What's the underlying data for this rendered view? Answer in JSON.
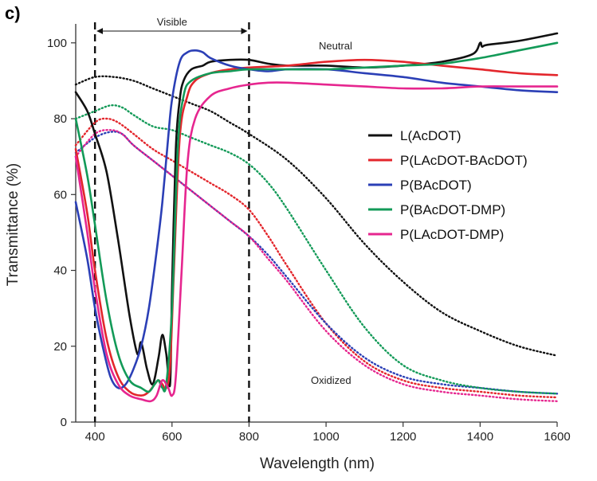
{
  "chart_data": {
    "type": "line",
    "panel_label": "c)",
    "xlabel": "Wavelength (nm)",
    "ylabel": "Transmittance (%)",
    "xlim": [
      350,
      1600
    ],
    "ylim": [
      0,
      105
    ],
    "xticks": [
      400,
      600,
      800,
      1000,
      1200,
      1400,
      1600
    ],
    "yticks": [
      0,
      20,
      40,
      60,
      80,
      100
    ],
    "grid": false,
    "legend_position": "right",
    "annotations": {
      "visible_label": "Visible",
      "visible_range": [
        400,
        800
      ],
      "neutral_label": "Neutral",
      "oxidized_label": "Oxidized"
    },
    "series": [
      {
        "name": "L(AcDOT)",
        "color": "#111111",
        "state": "neutral",
        "x": [
          350,
          380,
          400,
          430,
          460,
          490,
          510,
          520,
          535,
          550,
          565,
          575,
          585,
          595,
          600,
          610,
          620,
          630,
          650,
          680,
          700,
          750,
          800,
          850,
          900,
          1000,
          1100,
          1200,
          1300,
          1380,
          1400,
          1405,
          1420,
          1500,
          1600
        ],
        "y": [
          87,
          82,
          76,
          66,
          48,
          28,
          18,
          21,
          14,
          10,
          17,
          23,
          18,
          10,
          35,
          72,
          85,
          90,
          93,
          94,
          95,
          95.5,
          95.5,
          94.5,
          94,
          94,
          93.5,
          94,
          95,
          97,
          100,
          99,
          99.5,
          100.5,
          102.5
        ]
      },
      {
        "name": "P(LAcDOT-BAcDOT)",
        "color": "#e3262c",
        "state": "neutral",
        "x": [
          350,
          380,
          400,
          430,
          460,
          490,
          520,
          540,
          555,
          565,
          575,
          585,
          595,
          605,
          620,
          640,
          660,
          700,
          750,
          800,
          900,
          1000,
          1100,
          1200,
          1300,
          1400,
          1500,
          1600
        ],
        "y": [
          72,
          55,
          40,
          22,
          12,
          8,
          7,
          8,
          10,
          11,
          10,
          9,
          15,
          40,
          75,
          86,
          90,
          92,
          93,
          93.5,
          94,
          95,
          95.5,
          95,
          94,
          93,
          92,
          91.5
        ]
      },
      {
        "name": "P(BAcDOT)",
        "color": "#2b3fb6",
        "state": "neutral",
        "x": [
          350,
          380,
          400,
          420,
          440,
          460,
          480,
          500,
          520,
          540,
          560,
          575,
          590,
          600,
          620,
          640,
          660,
          680,
          700,
          750,
          800,
          850,
          900,
          1000,
          1100,
          1200,
          1300,
          1400,
          1500,
          1600
        ],
        "y": [
          58,
          43,
          30,
          20,
          12,
          9,
          10,
          14,
          20,
          30,
          45,
          58,
          75,
          85,
          95,
          97.5,
          98,
          97.5,
          96,
          94,
          93,
          92.5,
          93,
          93,
          92,
          91,
          89.5,
          88.5,
          87.5,
          87
        ]
      },
      {
        "name": "P(BAcDOT-DMP)",
        "color": "#139a58",
        "state": "neutral",
        "x": [
          350,
          380,
          400,
          430,
          460,
          490,
          520,
          540,
          555,
          565,
          575,
          585,
          600,
          615,
          630,
          650,
          700,
          750,
          800,
          900,
          1000,
          1100,
          1200,
          1300,
          1400,
          1500,
          1600
        ],
        "y": [
          80,
          65,
          52,
          32,
          18,
          11,
          9,
          8,
          10,
          11,
          9,
          10,
          30,
          72,
          86,
          90,
          92,
          92.5,
          93,
          93,
          93,
          93.5,
          94,
          94.5,
          96,
          98,
          100
        ]
      },
      {
        "name": "P(LAcDOT-DMP)",
        "color": "#e6268f",
        "state": "neutral",
        "x": [
          350,
          380,
          400,
          430,
          460,
          490,
          520,
          545,
          560,
          575,
          590,
          600,
          610,
          625,
          640,
          660,
          700,
          750,
          800,
          850,
          900,
          1000,
          1100,
          1200,
          1300,
          1400,
          1500,
          1600
        ],
        "y": [
          70,
          50,
          35,
          18,
          10,
          7,
          6,
          5.5,
          7,
          11,
          9,
          7,
          12,
          40,
          68,
          80,
          86,
          88,
          89,
          89.5,
          89.5,
          89,
          88.5,
          88,
          88,
          88.5,
          88.5,
          88.5
        ]
      },
      {
        "name": "",
        "color": "#111111",
        "state": "oxidized",
        "x": [
          350,
          400,
          450,
          500,
          550,
          600,
          650,
          700,
          750,
          800,
          900,
          1000,
          1100,
          1200,
          1300,
          1400,
          1500,
          1600
        ],
        "y": [
          89,
          91,
          91,
          90,
          88,
          86,
          84,
          82,
          79,
          76,
          69,
          59,
          47,
          37,
          29,
          24,
          20,
          17.5
        ]
      },
      {
        "name": "",
        "color": "#e3262c",
        "state": "oxidized",
        "x": [
          350,
          400,
          430,
          460,
          500,
          550,
          600,
          650,
          700,
          750,
          800,
          850,
          900,
          1000,
          1100,
          1200,
          1300,
          1400,
          1500,
          1600
        ],
        "y": [
          73,
          79,
          80,
          79,
          76,
          72,
          69,
          66,
          63,
          60,
          56,
          49,
          41,
          26,
          16,
          11,
          9,
          8,
          7,
          6.5
        ]
      },
      {
        "name": "",
        "color": "#2b3fb6",
        "state": "oxidized",
        "x": [
          350,
          400,
          440,
          470,
          500,
          550,
          600,
          650,
          700,
          750,
          800,
          850,
          900,
          1000,
          1100,
          1200,
          1300,
          1400,
          1500,
          1600
        ],
        "y": [
          71,
          75,
          76.5,
          76,
          73,
          69,
          65,
          61,
          57,
          53,
          49,
          44,
          38,
          26,
          17,
          12,
          10,
          9,
          8,
          7.5
        ]
      },
      {
        "name": "",
        "color": "#139a58",
        "state": "oxidized",
        "x": [
          350,
          400,
          440,
          470,
          500,
          550,
          600,
          650,
          700,
          750,
          800,
          850,
          900,
          1000,
          1100,
          1200,
          1300,
          1400,
          1500,
          1600
        ],
        "y": [
          80,
          82,
          83.5,
          83,
          81,
          78,
          77,
          75,
          73,
          71,
          68,
          63,
          56,
          40,
          25,
          15,
          11,
          9,
          8,
          7.5
        ]
      },
      {
        "name": "",
        "color": "#e6268f",
        "state": "oxidized",
        "x": [
          350,
          400,
          440,
          470,
          500,
          550,
          600,
          650,
          700,
          750,
          800,
          850,
          900,
          1000,
          1100,
          1200,
          1300,
          1400,
          1500,
          1600
        ],
        "y": [
          70,
          76,
          77,
          76,
          73,
          69,
          65,
          61,
          57,
          53,
          49,
          43,
          37,
          24,
          15,
          10,
          8,
          7,
          6,
          5.5
        ]
      }
    ]
  }
}
